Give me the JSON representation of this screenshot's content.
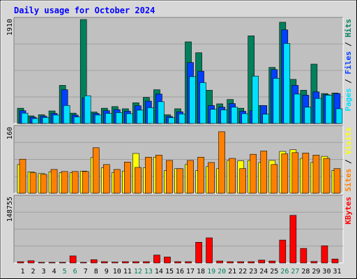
{
  "title": "Daily usage for October 2024",
  "colors": {
    "hits": "#00805c",
    "files": "#0040ff",
    "pages": "#00e0ff",
    "visits": "#ffff00",
    "sites": "#ff8000",
    "kbytes": "#ff0000",
    "title": "#0000ff",
    "panel": "#c0c0c0",
    "background": "#d7d7d7",
    "weekend": "#00805c"
  },
  "chart_data": [
    {
      "type": "bar",
      "categories": [
        "1",
        "2",
        "3",
        "4",
        "5",
        "6",
        "7",
        "8",
        "9",
        "10",
        "11",
        "12",
        "13",
        "14",
        "15",
        "16",
        "17",
        "18",
        "19",
        "20",
        "21",
        "22",
        "23",
        "24",
        "25",
        "26",
        "27",
        "28",
        "29",
        "30",
        "31"
      ],
      "weekend_days": [
        "5",
        "6",
        "12",
        "13",
        "19",
        "20",
        "26",
        "27"
      ],
      "ytick": "1910",
      "ylim": [
        0,
        1910
      ],
      "series": [
        {
          "name": "Hits",
          "key": "hits",
          "values": [
            280,
            140,
            160,
            230,
            700,
            190,
            1910,
            210,
            280,
            310,
            270,
            380,
            480,
            620,
            160,
            270,
            1500,
            1300,
            610,
            360,
            440,
            280,
            1610,
            330,
            1030,
            1860,
            810,
            610,
            1090,
            550,
            560
          ]
        },
        {
          "name": "Files",
          "key": "files",
          "values": [
            235,
            115,
            135,
            185,
            620,
            155,
            470,
            185,
            235,
            255,
            225,
            325,
            410,
            540,
            130,
            215,
            1120,
            960,
            330,
            300,
            365,
            225,
            235,
            330,
            990,
            1720,
            700,
            520,
            580,
            530,
            550
          ]
        },
        {
          "name": "Pages",
          "key": "pages",
          "values": [
            190,
            90,
            110,
            155,
            330,
            120,
            510,
            155,
            185,
            200,
            180,
            245,
            290,
            400,
            105,
            175,
            860,
            750,
            260,
            250,
            300,
            180,
            870,
            170,
            830,
            1470,
            540,
            300,
            460,
            520,
            270
          ]
        }
      ]
    },
    {
      "type": "bar",
      "categories": [
        "1",
        "2",
        "3",
        "4",
        "5",
        "6",
        "7",
        "8",
        "9",
        "10",
        "11",
        "12",
        "13",
        "14",
        "15",
        "16",
        "17",
        "18",
        "19",
        "20",
        "21",
        "22",
        "23",
        "24",
        "25",
        "26",
        "27",
        "28",
        "29",
        "30",
        "31"
      ],
      "ytick": "160",
      "ylim": [
        0,
        160
      ],
      "series": [
        {
          "name": "Visits",
          "key": "visits",
          "values": [
            70,
            52,
            48,
            52,
            50,
            50,
            54,
            87,
            62,
            50,
            54,
            97,
            62,
            88,
            55,
            60,
            70,
            55,
            65,
            60,
            80,
            79,
            80,
            75,
            80,
            102,
            106,
            85,
            75,
            90,
            55
          ]
        },
        {
          "name": "Sites",
          "key": "sites",
          "values": [
            83,
            50,
            46,
            58,
            53,
            53,
            53,
            111,
            70,
            58,
            76,
            63,
            88,
            93,
            80,
            60,
            80,
            88,
            75,
            150,
            85,
            60,
            95,
            103,
            70,
            96,
            99,
            98,
            93,
            85,
            60
          ]
        }
      ]
    },
    {
      "type": "bar",
      "categories": [
        "1",
        "2",
        "3",
        "4",
        "5",
        "6",
        "7",
        "8",
        "9",
        "10",
        "11",
        "12",
        "13",
        "14",
        "15",
        "16",
        "17",
        "18",
        "19",
        "20",
        "21",
        "22",
        "23",
        "24",
        "25",
        "26",
        "27",
        "28",
        "29",
        "30",
        "31"
      ],
      "ytick": "148755",
      "ylim": [
        0,
        148755
      ],
      "series": [
        {
          "name": "KBytes",
          "key": "kbytes",
          "values": [
            3000,
            5000,
            1500,
            1500,
            1500,
            16000,
            1500,
            7500,
            3000,
            2000,
            3000,
            3000,
            3000,
            18000,
            13500,
            3000,
            3000,
            47000,
            57000,
            4500,
            3000,
            3000,
            3000,
            6500,
            4500,
            52000,
            108000,
            33000,
            3500,
            39000,
            9000
          ]
        }
      ]
    }
  ],
  "legends": [
    [
      {
        "text": "Pages",
        "key": "pages"
      },
      {
        "text": " / ",
        "key": "sep"
      },
      {
        "text": "Files",
        "key": "files"
      },
      {
        "text": " / ",
        "key": "sep"
      },
      {
        "text": "Hits",
        "key": "hits"
      }
    ],
    [
      {
        "text": "Sites",
        "key": "sites"
      },
      {
        "text": " / ",
        "key": "sep"
      },
      {
        "text": "Visits",
        "key": "visits"
      }
    ],
    [
      {
        "text": "KBytes",
        "key": "kbytes"
      }
    ]
  ]
}
